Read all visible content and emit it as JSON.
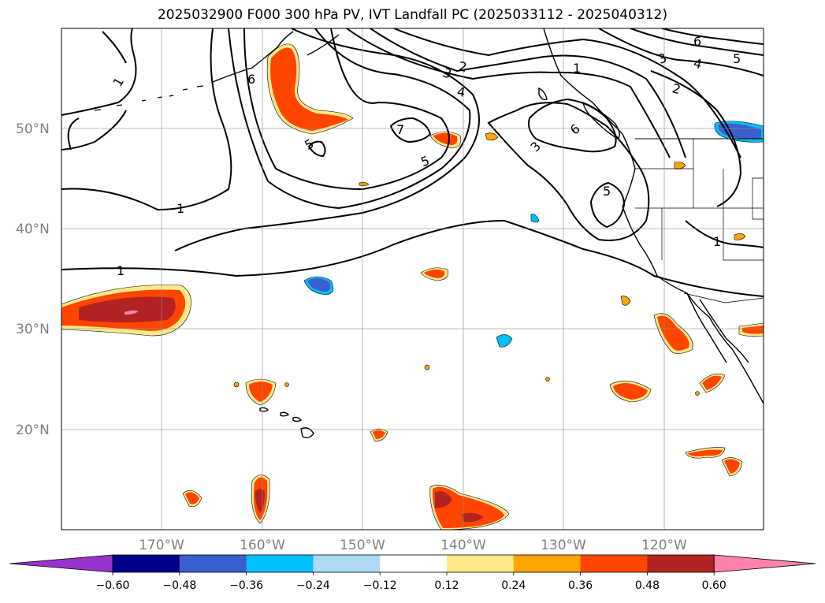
{
  "title": "2025032900 F000 300 hPa PV, IVT Landfall PC (2025033112 - 2025040312)",
  "lat_labels": [
    "50°N",
    "40°N",
    "30°N",
    "20°N"
  ],
  "lon_labels": [
    "170°W",
    "160°W",
    "150°W",
    "140°W",
    "130°W",
    "120°W"
  ],
  "contour_labels": [
    "1",
    "6",
    "5",
    "7",
    "5",
    "3",
    "2",
    "3",
    "4",
    "1",
    "6",
    "3",
    "5",
    "6",
    "4",
    "5",
    "2",
    "1",
    "1",
    "1"
  ],
  "colorbar": {
    "ticks": [
      "−0.60",
      "−0.48",
      "−0.36",
      "−0.24",
      "−0.12",
      "0.12",
      "0.24",
      "0.36",
      "0.48",
      "0.60"
    ],
    "colors": [
      "#9932CC",
      "#00008B",
      "#3A5FCD",
      "#00BFFF",
      "#ADD8F6",
      "#FFFFFF",
      "#FFE88A",
      "#FFA500",
      "#FF4500",
      "#B22222",
      "#FF82AB"
    ]
  },
  "shading_colors": {
    "pos1": "#FFE88A",
    "pos2": "#FFA500",
    "pos3": "#FF4500",
    "pos4": "#B22222",
    "pos5": "#FF82AB",
    "neg1": "#ADD8F6",
    "neg2": "#00BFFF",
    "neg3": "#3A5FCD"
  }
}
